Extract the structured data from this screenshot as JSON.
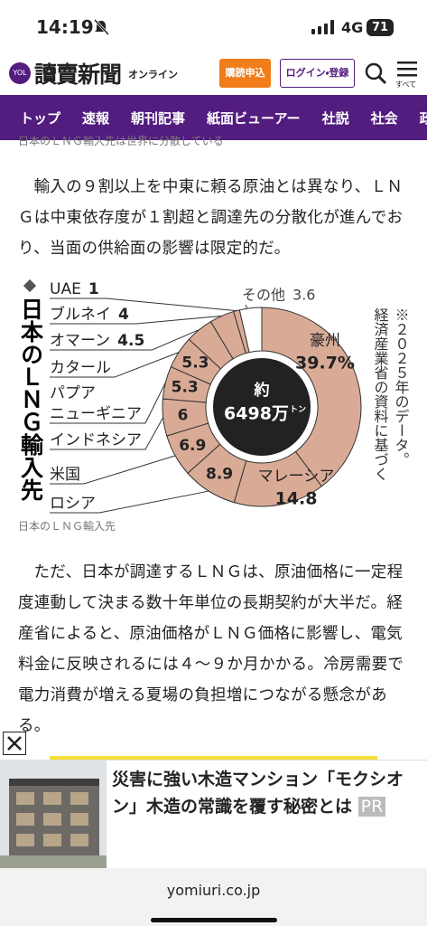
{
  "status_bar": {
    "time": "14:19",
    "network": "4G",
    "battery": "71"
  },
  "header": {
    "logo_mark": "YOL",
    "logo": "讀賣新聞",
    "logo_sub": "オンライン",
    "subscribe": "購読申込",
    "login": "ログイン・登録",
    "menu": "すべて"
  },
  "nav": {
    "items": [
      "トップ",
      "速報",
      "朝刊記事",
      "紙面ビューアー",
      "社説",
      "社会",
      "政治"
    ]
  },
  "caption_top": "日本のＬＮＧ輸入先は世界に分散している",
  "paragraphs": [
    "輸入の９割以上を中東に頼る原油とは異なり、ＬＮＧは中東依存度が１割超と調達先の分散化が進んでおり、当面の供給面の影響は限定的だ。",
    "ただ、日本が調達するＬＮＧは、原油価格に一定程度連動して決まる数十年単位の長期契約が大半だ。経産省によると、原油価格がＬＮＧ価格に影響し、電気料金に反映されるには４～９か月かかる。冷房需要で電力消費が増える夏場の負担増につながる懸念がある。"
  ],
  "chart_data": {
    "type": "donut",
    "title": "日本のＬＮＧ輸入先",
    "center": {
      "prefix": "約",
      "value": "6498万",
      "unit": "トン"
    },
    "note": [
      "※２０２５年のデータ。",
      "経済産業省の資料に基づく"
    ],
    "categories": [
      [
        "豪州"
      ],
      [
        "マレーシア"
      ],
      [
        "ロシア"
      ],
      [
        "米国"
      ],
      [
        "インドネシア"
      ],
      [
        "パプア",
        "ニューギニア"
      ],
      [
        "カタール"
      ],
      [
        "オマーン"
      ],
      [
        "ブルネイ"
      ],
      [
        "UAE"
      ],
      [
        "その他"
      ]
    ],
    "values": [
      39.7,
      14.8,
      8.9,
      6.9,
      6,
      5.3,
      5.3,
      4.5,
      4,
      1,
      3.6
    ],
    "value_labels": [
      "39.7%",
      "14.8",
      "8.9",
      "6.9",
      "6",
      "5.3",
      "5.3",
      "4.5",
      "4",
      "1",
      "3.6"
    ],
    "colors": [
      "#d9ab96",
      "#d9ab96",
      "#d9ab96",
      "#d9ab96",
      "#d9ab96",
      "#d9ab96",
      "#d9ab96",
      "#d9ab96",
      "#d9ab96",
      "#d9ab96",
      "#ffffff"
    ]
  },
  "chart_caption": "日本のＬＮＧ輸入先",
  "ad": {
    "text": "災害に強い木造マンション「モクシオン」木造の常識を覆す秘密とは",
    "badge": "PR"
  },
  "footer": {
    "domain": "yomiuri.co.jp"
  }
}
